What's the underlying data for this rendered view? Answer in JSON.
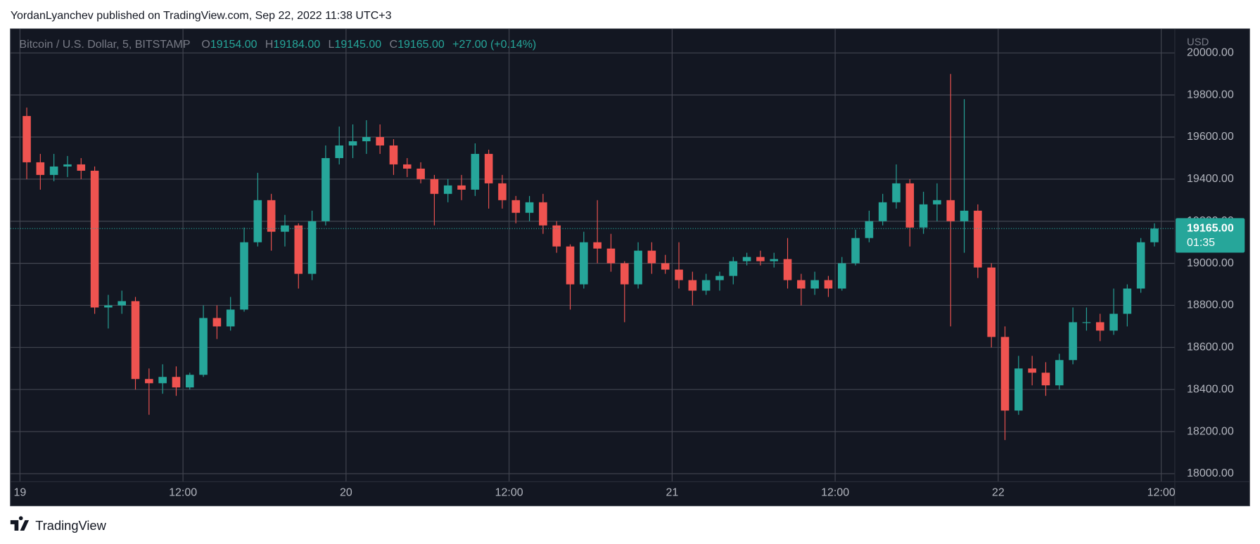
{
  "header": {
    "text": "YordanLyanchev published on TradingView.com, Sep 22, 2022 11:38 UTC+3"
  },
  "footer": {
    "brand": "TradingView"
  },
  "chart_data": {
    "type": "candlestick",
    "symbol": "Bitcoin / U.S. Dollar, 5, BITSTAMP",
    "legend": [
      {
        "key": "O",
        "value": "19154.00"
      },
      {
        "key": "H",
        "value": "19184.00"
      },
      {
        "key": "L",
        "value": "19145.00"
      },
      {
        "key": "C",
        "value": "19165.00"
      }
    ],
    "change": "+27.00 (+0.14%)",
    "currency": "USD",
    "last_price": {
      "value": 19165,
      "label": "19165.00"
    },
    "countdown": "01:35",
    "up_color": "#26a69a",
    "down_color": "#ef5350",
    "grid": true,
    "xlim": [
      -0.7,
      85
    ],
    "xticks": [
      {
        "value": 0,
        "label": "19"
      },
      {
        "value": 12,
        "label": "12:00"
      },
      {
        "value": 24,
        "label": "20"
      },
      {
        "value": 36,
        "label": "12:00"
      },
      {
        "value": 48,
        "label": "21"
      },
      {
        "value": 60,
        "label": "12:00"
      },
      {
        "value": 72,
        "label": "22"
      },
      {
        "value": 84,
        "label": "12:00"
      }
    ],
    "ylim": [
      17962,
      20114
    ],
    "yticks": [
      {
        "value": 18000,
        "label": "18000.00"
      },
      {
        "value": 18200,
        "label": "18200.00"
      },
      {
        "value": 18400,
        "label": "18400.00"
      },
      {
        "value": 18600,
        "label": "18600.00"
      },
      {
        "value": 18800,
        "label": "18800.00"
      },
      {
        "value": 19000,
        "label": "19000.00"
      },
      {
        "value": 19200,
        "label": "19200.00"
      },
      {
        "value": 19400,
        "label": "19400.00"
      },
      {
        "value": 19600,
        "label": "19600.00"
      },
      {
        "value": 19800,
        "label": "19800.00"
      },
      {
        "value": 20000,
        "label": "20000.00"
      }
    ],
    "ohlc": [
      [
        19700,
        19740,
        19400,
        19480
      ],
      [
        19480,
        19520,
        19350,
        19420
      ],
      [
        19420,
        19520,
        19390,
        19460
      ],
      [
        19460,
        19510,
        19410,
        19470
      ],
      [
        19470,
        19500,
        19400,
        19440
      ],
      [
        19440,
        19460,
        18760,
        18790
      ],
      [
        18790,
        18850,
        18690,
        18800
      ],
      [
        18800,
        18870,
        18760,
        18820
      ],
      [
        18820,
        18840,
        18400,
        18450
      ],
      [
        18450,
        18500,
        18280,
        18430
      ],
      [
        18430,
        18520,
        18380,
        18460
      ],
      [
        18460,
        18510,
        18370,
        18410
      ],
      [
        18410,
        18480,
        18400,
        18470
      ],
      [
        18470,
        18800,
        18460,
        18740
      ],
      [
        18740,
        18800,
        18640,
        18700
      ],
      [
        18700,
        18840,
        18680,
        18780
      ],
      [
        18780,
        19170,
        18770,
        19100
      ],
      [
        19100,
        19430,
        19080,
        19300
      ],
      [
        19300,
        19330,
        19060,
        19150
      ],
      [
        19150,
        19230,
        19080,
        19180
      ],
      [
        19180,
        19190,
        18880,
        18950
      ],
      [
        18950,
        19250,
        18920,
        19200
      ],
      [
        19200,
        19560,
        19180,
        19500
      ],
      [
        19500,
        19650,
        19470,
        19560
      ],
      [
        19560,
        19660,
        19500,
        19580
      ],
      [
        19580,
        19680,
        19520,
        19600
      ],
      [
        19600,
        19660,
        19520,
        19560
      ],
      [
        19560,
        19590,
        19420,
        19470
      ],
      [
        19470,
        19500,
        19410,
        19450
      ],
      [
        19450,
        19480,
        19380,
        19400
      ],
      [
        19400,
        19420,
        19180,
        19330
      ],
      [
        19330,
        19400,
        19290,
        19370
      ],
      [
        19370,
        19420,
        19300,
        19350
      ],
      [
        19350,
        19570,
        19320,
        19520
      ],
      [
        19520,
        19540,
        19260,
        19380
      ],
      [
        19380,
        19420,
        19260,
        19300
      ],
      [
        19300,
        19320,
        19190,
        19240
      ],
      [
        19240,
        19320,
        19200,
        19290
      ],
      [
        19290,
        19330,
        19140,
        19180
      ],
      [
        19180,
        19200,
        19050,
        19080
      ],
      [
        19080,
        19090,
        18780,
        18900
      ],
      [
        18900,
        19150,
        18880,
        19100
      ],
      [
        19100,
        19300,
        19000,
        19070
      ],
      [
        19070,
        19140,
        18960,
        19000
      ],
      [
        19000,
        19010,
        18720,
        18900
      ],
      [
        18900,
        19100,
        18880,
        19060
      ],
      [
        19060,
        19100,
        18950,
        19000
      ],
      [
        19000,
        19040,
        18950,
        18970
      ],
      [
        18970,
        19100,
        18880,
        18920
      ],
      [
        18920,
        18960,
        18800,
        18870
      ],
      [
        18870,
        18950,
        18850,
        18920
      ],
      [
        18920,
        18960,
        18870,
        18940
      ],
      [
        18940,
        19030,
        18900,
        19010
      ],
      [
        19010,
        19050,
        18990,
        19030
      ],
      [
        19030,
        19060,
        18990,
        19010
      ],
      [
        19010,
        19050,
        18980,
        19020
      ],
      [
        19020,
        19120,
        18880,
        18920
      ],
      [
        18920,
        18950,
        18800,
        18880
      ],
      [
        18880,
        18960,
        18850,
        18920
      ],
      [
        18920,
        18940,
        18840,
        18880
      ],
      [
        18880,
        19030,
        18870,
        19000
      ],
      [
        19000,
        19160,
        18990,
        19120
      ],
      [
        19120,
        19250,
        19100,
        19200
      ],
      [
        19200,
        19330,
        19180,
        19290
      ],
      [
        19290,
        19470,
        19260,
        19380
      ],
      [
        19380,
        19400,
        19080,
        19170
      ],
      [
        19170,
        19340,
        19140,
        19280
      ],
      [
        19280,
        19380,
        19200,
        19300
      ],
      [
        19300,
        19900,
        18700,
        19200
      ],
      [
        19200,
        19780,
        19050,
        19250
      ],
      [
        19250,
        19280,
        18930,
        18980
      ],
      [
        18980,
        19000,
        18600,
        18650
      ],
      [
        18650,
        18700,
        18160,
        18300
      ],
      [
        18300,
        18560,
        18280,
        18500
      ],
      [
        18500,
        18560,
        18420,
        18480
      ],
      [
        18480,
        18530,
        18370,
        18420
      ],
      [
        18420,
        18570,
        18400,
        18540
      ],
      [
        18540,
        18790,
        18520,
        18720
      ],
      [
        18720,
        18790,
        18680,
        18720
      ],
      [
        18720,
        18760,
        18630,
        18680
      ],
      [
        18680,
        18880,
        18660,
        18760
      ],
      [
        18760,
        18900,
        18700,
        18880
      ],
      [
        18880,
        19120,
        18860,
        19100
      ],
      [
        19100,
        19190,
        19080,
        19165
      ]
    ]
  }
}
